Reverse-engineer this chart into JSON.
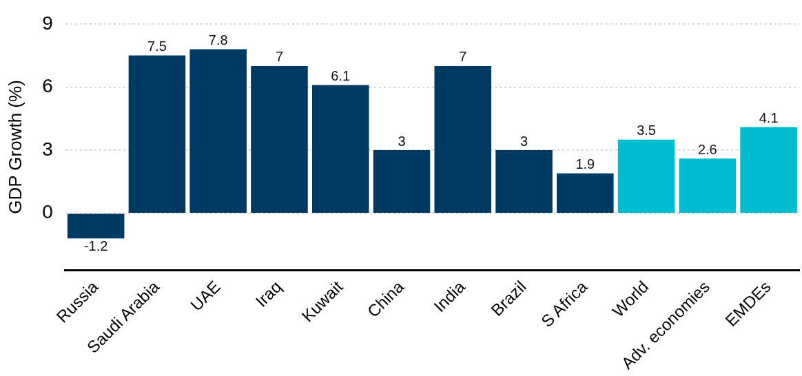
{
  "chart_data": {
    "type": "bar",
    "ylabel": "GDP Growth (%)",
    "categories": [
      "Russia",
      "Saudi Arabia",
      "UAE",
      "Iraq",
      "Kuwait",
      "China",
      "India",
      "Brazil",
      "S Africa",
      "World",
      "Adv. economies",
      "EMDEs"
    ],
    "values": [
      -1.2,
      7.5,
      7.8,
      7,
      6.1,
      3,
      7,
      3,
      1.9,
      3.5,
      2.6,
      4.1
    ],
    "colors": [
      "#003a63",
      "#003a63",
      "#003a63",
      "#003a63",
      "#003a63",
      "#003a63",
      "#003a63",
      "#003a63",
      "#003a63",
      "#00bcd0",
      "#00bcd0",
      "#00bcd0"
    ],
    "ylim": [
      -2.7,
      9
    ],
    "yticks": [
      0,
      3,
      6,
      9
    ],
    "grid": "y",
    "data_labels": true,
    "legend": false
  }
}
